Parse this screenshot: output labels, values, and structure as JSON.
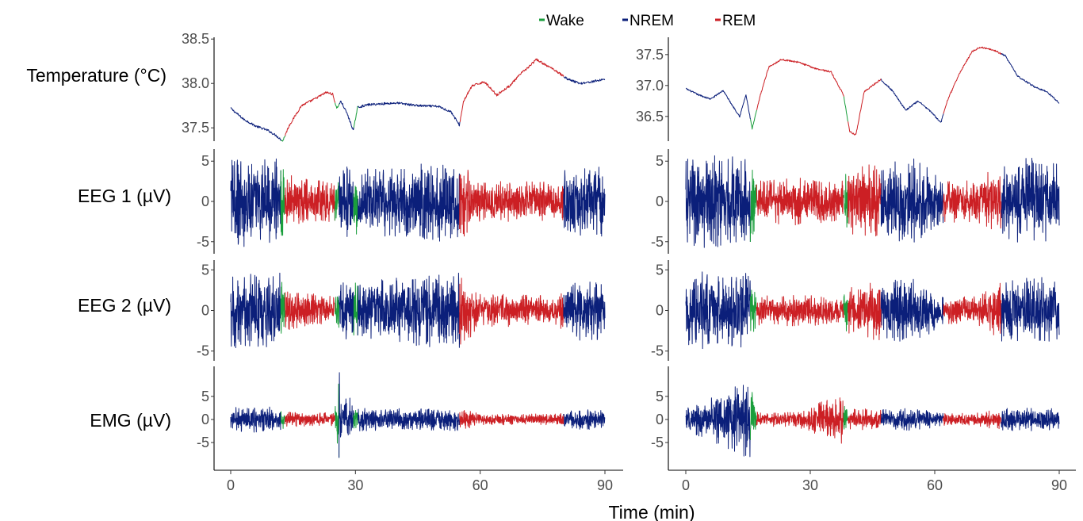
{
  "chart_data": {
    "type": "line",
    "xlabel": "Time (min)",
    "xlim": [
      0,
      90
    ],
    "x_ticks": [
      0,
      30,
      60,
      90
    ],
    "x_tick_labels": [
      "0",
      "30",
      "60",
      "90"
    ],
    "legend_position": "top-center",
    "legend": [
      {
        "name": "Wake",
        "color": "#1a9e3c"
      },
      {
        "name": "NREM",
        "color": "#0b1f7a"
      },
      {
        "name": "REM",
        "color": "#cc1f24"
      }
    ],
    "row_labels": [
      "Temperature (°C)",
      "EEG 1 (µV)",
      "EEG 2 (µV)",
      "EMG (µV)"
    ],
    "rows": [
      {
        "signal": "Temperature",
        "ylabel": "Temperature (°C)",
        "left": {
          "ylim": [
            37.35,
            38.52
          ],
          "ticks": [
            37.5,
            38.0,
            38.5
          ],
          "tick_labels": [
            "37.5",
            "38.0",
            "38.5"
          ]
        },
        "right": {
          "ylim": [
            36.1,
            37.78
          ],
          "ticks": [
            36.5,
            37.0,
            37.5
          ],
          "tick_labels": [
            "36.5",
            "37.0",
            "37.5"
          ]
        }
      },
      {
        "signal": "EEG 1",
        "ylabel": "EEG 1 (µV)",
        "left": {
          "ylim": [
            -6.5,
            6.5
          ],
          "ticks": [
            -5,
            0,
            5
          ],
          "tick_labels": [
            "-5",
            "0",
            "5"
          ]
        },
        "right": {
          "ylim": [
            -6.5,
            6.5
          ],
          "ticks": [
            -5,
            0,
            5
          ],
          "tick_labels": [
            "-5",
            "0",
            "5"
          ]
        }
      },
      {
        "signal": "EEG 2",
        "ylabel": "EEG 2 (µV)",
        "left": {
          "ylim": [
            -6.2,
            6.2
          ],
          "ticks": [
            -5,
            0,
            5
          ],
          "tick_labels": [
            "-5",
            "0",
            "5"
          ]
        },
        "right": {
          "ylim": [
            -6.2,
            6.2
          ],
          "ticks": [
            -5,
            0,
            5
          ],
          "tick_labels": [
            "-5",
            "0",
            "5"
          ]
        }
      },
      {
        "signal": "EMG",
        "ylabel": "EMG (µV)",
        "left": {
          "ylim": [
            -11,
            11.5
          ],
          "ticks": [
            -5,
            0,
            5
          ],
          "tick_labels": [
            "-5",
            "0",
            "5"
          ]
        },
        "right": {
          "ylim": [
            -11,
            11.5
          ],
          "ticks": [
            -5,
            0,
            5
          ],
          "tick_labels": [
            "-5",
            "0",
            "5"
          ]
        }
      }
    ],
    "panels": [
      {
        "id": "left",
        "hypnogram": [
          {
            "start": 0,
            "end": 12,
            "state": "NREM"
          },
          {
            "start": 12,
            "end": 13,
            "state": "Wake"
          },
          {
            "start": 13,
            "end": 25,
            "state": "REM"
          },
          {
            "start": 25,
            "end": 26,
            "state": "Wake"
          },
          {
            "start": 26,
            "end": 29.5,
            "state": "NREM"
          },
          {
            "start": 29.5,
            "end": 30.5,
            "state": "Wake"
          },
          {
            "start": 30.5,
            "end": 55,
            "state": "NREM"
          },
          {
            "start": 55,
            "end": 80,
            "state": "REM"
          },
          {
            "start": 80,
            "end": 90,
            "state": "NREM"
          }
        ],
        "temperature": {
          "x": [
            0,
            3,
            6,
            9,
            11,
            12.5,
            14,
            17,
            20,
            23,
            24.5,
            25.5,
            26.5,
            28,
            29.5,
            30.5,
            33,
            36,
            40,
            45,
            50,
            53,
            55,
            56,
            58,
            61,
            64,
            67,
            70,
            72,
            73.5,
            76,
            78,
            81,
            84,
            87,
            90
          ],
          "y": [
            37.72,
            37.6,
            37.52,
            37.47,
            37.41,
            37.35,
            37.52,
            37.75,
            37.82,
            37.9,
            37.88,
            37.72,
            37.8,
            37.66,
            37.47,
            37.73,
            37.76,
            37.77,
            37.78,
            37.75,
            37.74,
            37.68,
            37.53,
            37.8,
            37.97,
            38.02,
            37.87,
            37.97,
            38.12,
            38.2,
            38.27,
            38.2,
            38.15,
            38.05,
            38.0,
            38.02,
            38.05
          ]
        },
        "eeg1_envelope": {
          "x": [
            0,
            12,
            13,
            25,
            26,
            29.5,
            30.5,
            40,
            48,
            55,
            60,
            70,
            79,
            80,
            86,
            90
          ],
          "amp": [
            5.6,
            5.8,
            3.5,
            2.4,
            4.2,
            4.6,
            4.0,
            4.6,
            5.0,
            5.2,
            2.6,
            2.6,
            2.4,
            4.2,
            4.6,
            4.4
          ]
        },
        "eeg2_envelope": {
          "x": [
            0,
            12,
            13,
            25,
            26,
            29.5,
            30.5,
            40,
            48,
            55,
            60,
            70,
            79,
            80,
            86,
            90
          ],
          "amp": [
            4.6,
            4.8,
            2.4,
            1.8,
            3.4,
            3.8,
            3.4,
            4.2,
            4.6,
            4.8,
            2.0,
            2.0,
            1.8,
            3.4,
            3.8,
            3.6
          ]
        },
        "emg_envelope": {
          "x": [
            0,
            12,
            13,
            25,
            26,
            29.5,
            30.5,
            40,
            48,
            55,
            60,
            70,
            79,
            80,
            86,
            90
          ],
          "amp": [
            2.6,
            3.0,
            1.6,
            1.5,
            10.5,
            2.8,
            2.5,
            2.4,
            2.5,
            2.5,
            1.2,
            1.2,
            1.2,
            2.0,
            2.2,
            2.0
          ]
        }
      },
      {
        "id": "right",
        "hypnogram": [
          {
            "start": 0,
            "end": 15.5,
            "state": "NREM"
          },
          {
            "start": 15.5,
            "end": 17,
            "state": "Wake"
          },
          {
            "start": 17,
            "end": 38,
            "state": "REM"
          },
          {
            "start": 38,
            "end": 39,
            "state": "Wake"
          },
          {
            "start": 39,
            "end": 47,
            "state": "REM"
          },
          {
            "start": 47,
            "end": 62,
            "state": "NREM"
          },
          {
            "start": 62,
            "end": 76,
            "state": "REM"
          },
          {
            "start": 76,
            "end": 90,
            "state": "NREM"
          }
        ],
        "temperature": {
          "x": [
            0,
            3,
            6,
            9,
            11,
            13,
            14.5,
            16,
            18,
            20,
            23,
            27,
            31,
            35,
            38,
            39.5,
            41,
            43,
            47,
            50,
            53,
            56,
            59,
            61.5,
            63,
            66,
            69,
            71,
            74,
            77,
            80,
            84,
            87,
            90
          ],
          "y": [
            36.95,
            36.85,
            36.78,
            36.92,
            36.7,
            36.5,
            36.85,
            36.3,
            36.85,
            37.3,
            37.42,
            37.38,
            37.28,
            37.22,
            36.85,
            36.25,
            36.2,
            36.9,
            37.1,
            36.9,
            36.6,
            36.75,
            36.58,
            36.4,
            36.75,
            37.2,
            37.55,
            37.62,
            37.58,
            37.48,
            37.15,
            36.98,
            36.9,
            36.72
          ]
        },
        "eeg1_envelope": {
          "x": [
            0,
            15.5,
            17,
            27,
            38,
            39,
            47,
            55,
            62,
            70,
            76,
            84,
            90
          ],
          "amp": [
            5.8,
            5.6,
            2.6,
            3.0,
            2.6,
            4.2,
            4.8,
            5.4,
            2.8,
            2.6,
            5.0,
            5.6,
            5.0
          ]
        },
        "eeg2_envelope": {
          "x": [
            0,
            15.5,
            17,
            27,
            38,
            39,
            47,
            55,
            62,
            70,
            76,
            84,
            90
          ],
          "amp": [
            4.8,
            4.6,
            1.8,
            2.0,
            1.8,
            3.2,
            3.8,
            4.2,
            1.8,
            1.8,
            3.8,
            4.2,
            3.8
          ]
        },
        "emg_envelope": {
          "x": [
            0,
            15.5,
            17,
            27,
            38,
            39,
            47,
            55,
            62,
            70,
            76,
            84,
            90
          ],
          "amp": [
            2.6,
            9.5,
            1.6,
            1.6,
            6.0,
            2.2,
            2.4,
            2.4,
            1.4,
            1.4,
            2.4,
            2.6,
            2.4
          ]
        }
      }
    ]
  }
}
